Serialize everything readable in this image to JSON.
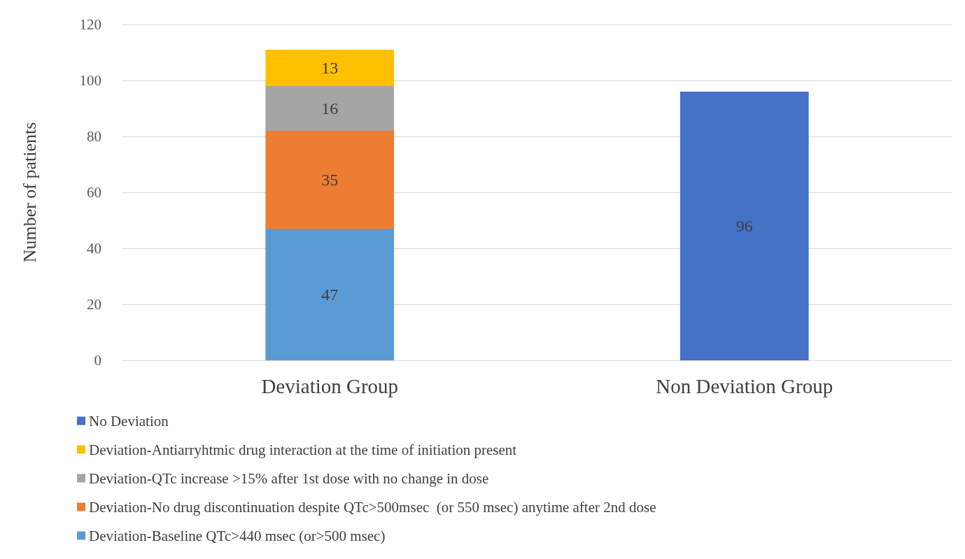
{
  "chart_data": {
    "type": "bar",
    "stacked": true,
    "ylabel": "Number of patients",
    "categories": [
      "Deviation Group",
      "Non Deviation Group"
    ],
    "series": [
      {
        "name": "Deviation-Baseline QTc>440 msec (or>500 msec)",
        "color": "#5b9bd5",
        "values": [
          47,
          null
        ]
      },
      {
        "name": "Deviation-No drug discontinuation despite QTc>500msec  (or 550 msec) anytime after 2nd dose",
        "color": "#ed7d31",
        "values": [
          35,
          null
        ]
      },
      {
        "name": "Deviation-QTc increase >15% after 1st dose with no change in dose",
        "color": "#a5a5a5",
        "values": [
          16,
          null
        ]
      },
      {
        "name": "Deviation-Antiarryhtmic drug interaction at the time of initiation present",
        "color": "#ffc000",
        "values": [
          13,
          null
        ]
      },
      {
        "name": "No Deviation",
        "color": "#4472c4",
        "values": [
          null,
          96
        ]
      }
    ],
    "ylim": [
      0,
      120
    ],
    "yticks": [
      0,
      20,
      40,
      60,
      80,
      100,
      120
    ],
    "grid": "y",
    "legend": "bottom",
    "data_labels": true
  }
}
